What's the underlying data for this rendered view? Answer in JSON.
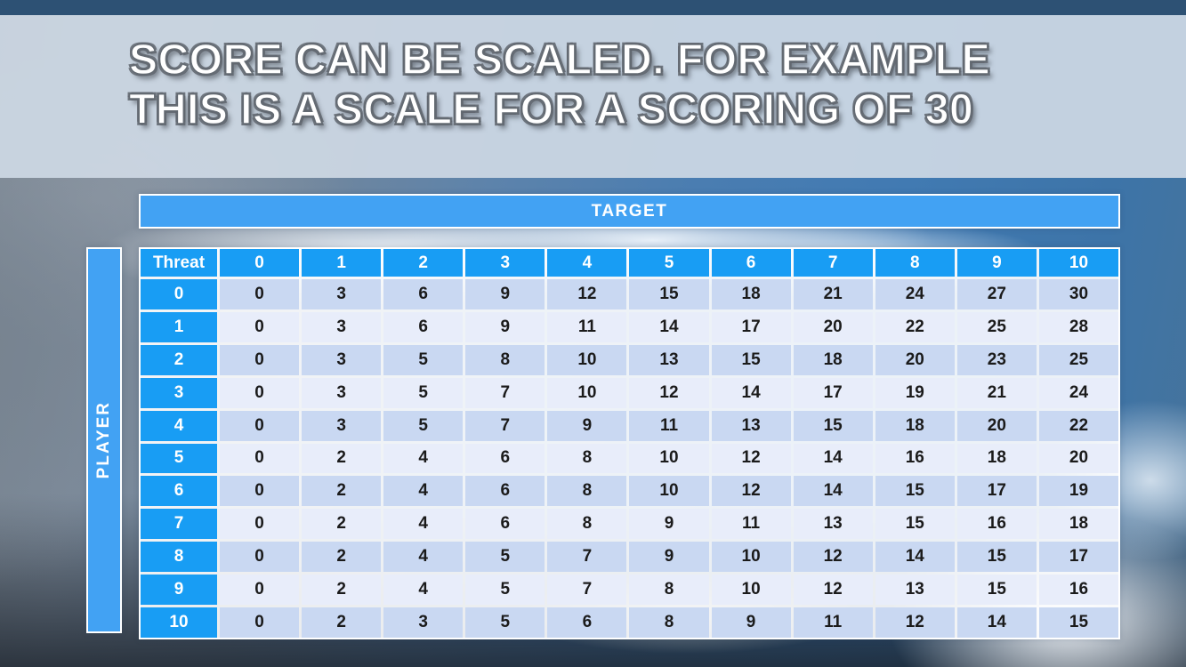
{
  "slide": {
    "title_line1": "SCORE CAN BE SCALED. FOR EXAMPLE",
    "title_line2": "THIS IS A SCALE FOR A SCORING OF 30"
  },
  "axes": {
    "top_label": "TARGET",
    "left_label": "PLAYER"
  },
  "table": {
    "corner_header": "Threat",
    "column_headers": [
      "0",
      "1",
      "2",
      "3",
      "4",
      "5",
      "6",
      "7",
      "8",
      "9",
      "10"
    ],
    "rows": [
      {
        "label": "0",
        "values": [
          0,
          3,
          6,
          9,
          12,
          15,
          18,
          21,
          24,
          27,
          30
        ]
      },
      {
        "label": "1",
        "values": [
          0,
          3,
          6,
          9,
          11,
          14,
          17,
          20,
          22,
          25,
          28
        ]
      },
      {
        "label": "2",
        "values": [
          0,
          3,
          5,
          8,
          10,
          13,
          15,
          18,
          20,
          23,
          25
        ]
      },
      {
        "label": "3",
        "values": [
          0,
          3,
          5,
          7,
          10,
          12,
          14,
          17,
          19,
          21,
          24
        ]
      },
      {
        "label": "4",
        "values": [
          0,
          3,
          5,
          7,
          9,
          11,
          13,
          15,
          18,
          20,
          22
        ]
      },
      {
        "label": "5",
        "values": [
          0,
          2,
          4,
          6,
          8,
          10,
          12,
          14,
          16,
          18,
          20
        ]
      },
      {
        "label": "6",
        "values": [
          0,
          2,
          4,
          6,
          8,
          10,
          12,
          14,
          15,
          17,
          19
        ]
      },
      {
        "label": "7",
        "values": [
          0,
          2,
          4,
          6,
          8,
          9,
          11,
          13,
          15,
          16,
          18
        ]
      },
      {
        "label": "8",
        "values": [
          0,
          2,
          4,
          5,
          7,
          9,
          10,
          12,
          14,
          15,
          17
        ]
      },
      {
        "label": "9",
        "values": [
          0,
          2,
          4,
          5,
          7,
          8,
          10,
          12,
          13,
          15,
          16
        ]
      },
      {
        "label": "10",
        "values": [
          0,
          2,
          3,
          5,
          6,
          8,
          9,
          11,
          12,
          14,
          15
        ]
      }
    ]
  },
  "chart_data": {
    "type": "table",
    "title": "Score scale for a scoring of 30",
    "x_axis_label": "TARGET",
    "y_axis_label": "PLAYER",
    "row_header": "Threat",
    "columns": [
      "0",
      "1",
      "2",
      "3",
      "4",
      "5",
      "6",
      "7",
      "8",
      "9",
      "10"
    ],
    "rows": [
      "0",
      "1",
      "2",
      "3",
      "4",
      "5",
      "6",
      "7",
      "8",
      "9",
      "10"
    ],
    "matrix": [
      [
        0,
        3,
        6,
        9,
        12,
        15,
        18,
        21,
        24,
        27,
        30
      ],
      [
        0,
        3,
        6,
        9,
        11,
        14,
        17,
        20,
        22,
        25,
        28
      ],
      [
        0,
        3,
        5,
        8,
        10,
        13,
        15,
        18,
        20,
        23,
        25
      ],
      [
        0,
        3,
        5,
        7,
        10,
        12,
        14,
        17,
        19,
        21,
        24
      ],
      [
        0,
        3,
        5,
        7,
        9,
        11,
        13,
        15,
        18,
        20,
        22
      ],
      [
        0,
        2,
        4,
        6,
        8,
        10,
        12,
        14,
        16,
        18,
        20
      ],
      [
        0,
        2,
        4,
        6,
        8,
        10,
        12,
        14,
        15,
        17,
        19
      ],
      [
        0,
        2,
        4,
        6,
        8,
        9,
        11,
        13,
        15,
        16,
        18
      ],
      [
        0,
        2,
        4,
        5,
        7,
        9,
        10,
        12,
        14,
        15,
        17
      ],
      [
        0,
        2,
        4,
        5,
        7,
        8,
        10,
        12,
        13,
        15,
        16
      ],
      [
        0,
        2,
        3,
        5,
        6,
        8,
        9,
        11,
        12,
        14,
        15
      ]
    ]
  },
  "colors": {
    "header_blue": "#189df4",
    "axis_bar_blue": "#42a2f3",
    "row_even_bg": "#c9d8f2",
    "row_odd_bg": "#e8edfa",
    "top_bar": "#2d5174",
    "title_band": "#ced8e4",
    "cell_text": "#1b1b1b"
  }
}
